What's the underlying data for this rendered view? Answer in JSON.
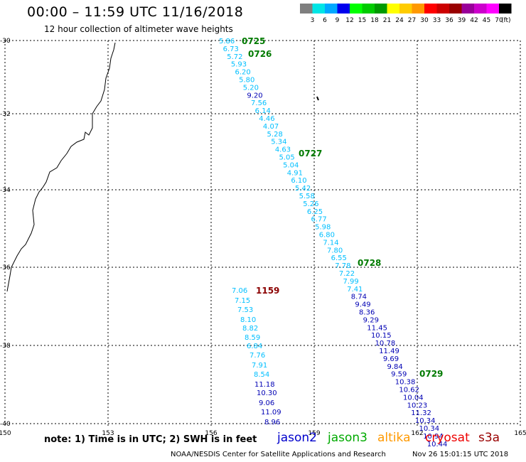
{
  "title": "00:00 – 11:59 UTC 11/16/2018",
  "subtitle": "12 hour collection of altimeter wave heights",
  "legend": {
    "unit": "(ft)",
    "items": [
      {
        "label": "3",
        "color": "#7f7f7f"
      },
      {
        "label": "6",
        "color": "#00e5e5"
      },
      {
        "label": "9",
        "color": "#00a8ff"
      },
      {
        "label": "12",
        "color": "#0000ee"
      },
      {
        "label": "15",
        "color": "#00ff00"
      },
      {
        "label": "18",
        "color": "#00cc00"
      },
      {
        "label": "21",
        "color": "#009a00"
      },
      {
        "label": "24",
        "color": "#ffff00"
      },
      {
        "label": "27",
        "color": "#ffcc00"
      },
      {
        "label": "30",
        "color": "#ff9900"
      },
      {
        "label": "33",
        "color": "#ff0000"
      },
      {
        "label": "36",
        "color": "#cc0000"
      },
      {
        "label": "39",
        "color": "#990000"
      },
      {
        "label": "42",
        "color": "#990099"
      },
      {
        "label": "45",
        "color": "#cc00cc"
      },
      {
        "label": "70",
        "color": "#ff00ff"
      },
      {
        "label": "",
        "color": "#000000"
      }
    ]
  },
  "colors": {
    "cyan": "#00bfff",
    "blue": "#0000b4",
    "green": "#007a00",
    "darkred": "#8b0000",
    "grid": "#000000"
  },
  "axes": {
    "lon_ticks": [
      "150",
      "153",
      "156",
      "159",
      "162",
      "165"
    ],
    "lat_ticks": [
      "-30",
      "-32",
      "-34",
      "-36",
      "-38",
      "-40"
    ]
  },
  "times": [
    {
      "text": "0725",
      "color": "green"
    },
    {
      "text": "0726",
      "color": "green"
    },
    {
      "text": "0727",
      "color": "green"
    },
    {
      "text": "0728",
      "color": "green"
    },
    {
      "text": "0729",
      "color": "green"
    },
    {
      "text": "1159",
      "color": "darkred"
    }
  ],
  "track1": [
    "5.86",
    "6.73",
    "5.72",
    "5.93",
    "6.20",
    "5.80",
    "5.20",
    "9.20",
    "7.56",
    "6.14",
    "4.46",
    "4.07",
    "5.28",
    "5.34",
    "4.63",
    "5.05",
    "5.04",
    "4.91",
    "6.10",
    "5.42",
    "5.58",
    "5.26",
    "6.25",
    "6.77",
    "5.98",
    "6.80",
    "7.14",
    "7.80",
    "6.55",
    "7.78",
    "7.22",
    "7.99",
    "7.41",
    "8.74",
    "9.49",
    "8.36",
    "9.29",
    "11.45",
    "10.15",
    "10.78",
    "11.49",
    "9.69",
    "9.84",
    "9.59",
    "10.38",
    "10.62",
    "10.04",
    "10.23",
    "11.32",
    "10.34",
    "10.34",
    "10.94",
    "10.44"
  ],
  "track2": [
    "7.06",
    "7.15",
    "7.53",
    "8.10",
    "8.82",
    "8.59",
    "6.84",
    "7.76",
    "7.91",
    "8.54",
    "11.18",
    "10.30",
    "9.06",
    "11.09",
    "8.96"
  ],
  "footer": {
    "note": "note:  1) Time is in UTC;  2) SWH is in feet",
    "satellites": [
      {
        "name": "jason2",
        "color": "#0000cc"
      },
      {
        "name": "jason3",
        "color": "#00aa00"
      },
      {
        "name": "altika",
        "color": "#ff9900"
      },
      {
        "name": "cryosat",
        "color": "#ee0000"
      },
      {
        "name": "s3a",
        "color": "#990000"
      }
    ],
    "credit_left": "NOAA/NESDIS Center for Satellite Applications and Research",
    "credit_right": "Nov 26 15:01:15 UTC 2018"
  }
}
